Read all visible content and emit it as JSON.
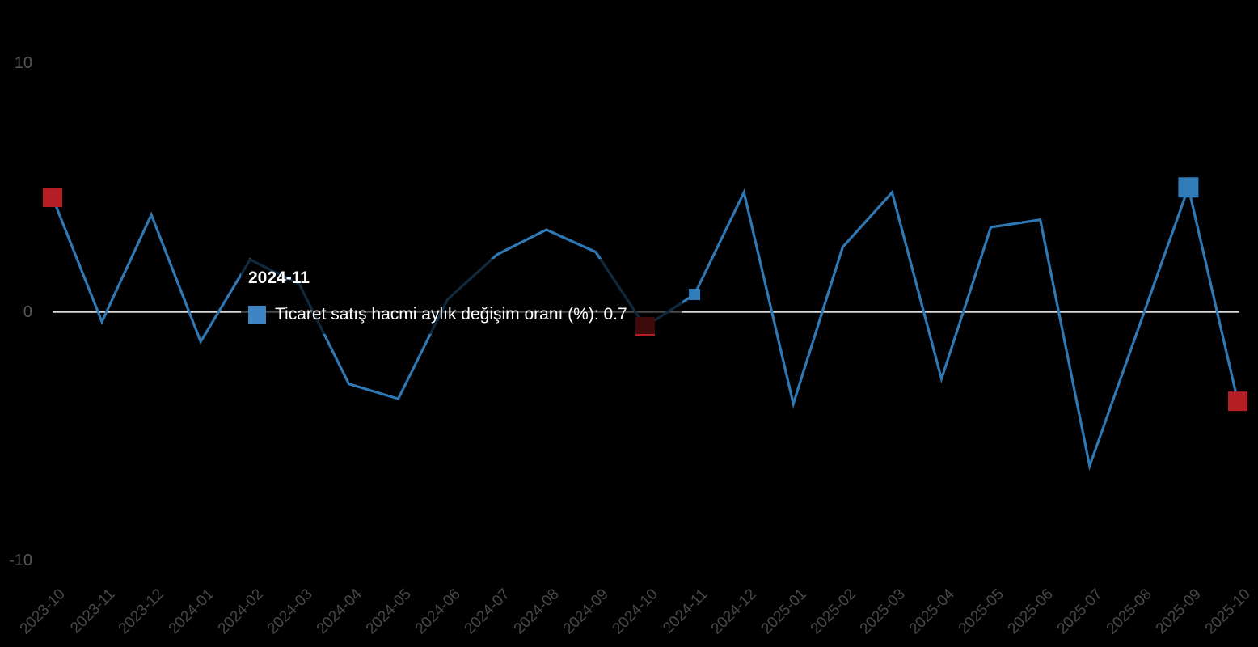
{
  "chart_data": {
    "type": "line",
    "categories": [
      "2023-10",
      "2023-11",
      "2023-12",
      "2024-01",
      "2024-02",
      "2024-03",
      "2024-04",
      "2024-05",
      "2024-06",
      "2024-07",
      "2024-08",
      "2024-09",
      "2024-10",
      "2024-11",
      "2024-12",
      "2025-01",
      "2025-02",
      "2025-03",
      "2025-04",
      "2025-05",
      "2025-06",
      "2025-07",
      "2025-08",
      "2025-09",
      "2025-10"
    ],
    "series": [
      {
        "name": "Ticaret satış hacmi aylık değişim oranı (%)",
        "values": [
          4.6,
          -0.4,
          3.9,
          -1.2,
          2.1,
          1.1,
          -2.9,
          -3.5,
          0.5,
          2.3,
          3.3,
          2.4,
          -0.6,
          0.7,
          4.8,
          -3.7,
          2.6,
          4.8,
          -2.7,
          3.4,
          3.7,
          -6.2,
          -0.6,
          5.0,
          -3.6
        ]
      }
    ],
    "title": "",
    "xlabel": "",
    "ylabel": "",
    "ylim": [
      -10,
      10
    ],
    "y_ticks": [
      "10",
      "0",
      "-10"
    ],
    "grid": "zero-line-only",
    "legend_position": "none"
  },
  "y_axis": {
    "labels": [
      {
        "text": "10",
        "value": 10
      },
      {
        "text": "0",
        "value": 0
      },
      {
        "text": "-10",
        "value": -10
      }
    ]
  },
  "tooltip": {
    "title": "2024-11",
    "series_label": "Ticaret satış hacmi aylık değişim oranı (%)",
    "value": "0.7",
    "text": "Ticaret satış hacmi aylık değişim oranı (%): 0.7"
  },
  "markers": [
    {
      "category": "2023-10",
      "kind": "red-square",
      "size": 24
    },
    {
      "category": "2024-10",
      "kind": "red-square",
      "size": 24
    },
    {
      "category": "2024-11",
      "kind": "blue-square-small",
      "size": 14
    },
    {
      "category": "2025-09",
      "kind": "blue-square",
      "size": 25
    },
    {
      "category": "2025-10",
      "kind": "red-square",
      "size": 24
    }
  ],
  "colors": {
    "background": "#000000",
    "line": "#2F78B4",
    "marker_blue": "#2F7CB8",
    "marker_red": "#B51E24",
    "zero_line": "#D9D9D9",
    "axis_label_y": "#565656",
    "axis_label_x": "#494949",
    "tooltip_marker": "#3E84C2",
    "tooltip_text": "#FFFFFF"
  }
}
